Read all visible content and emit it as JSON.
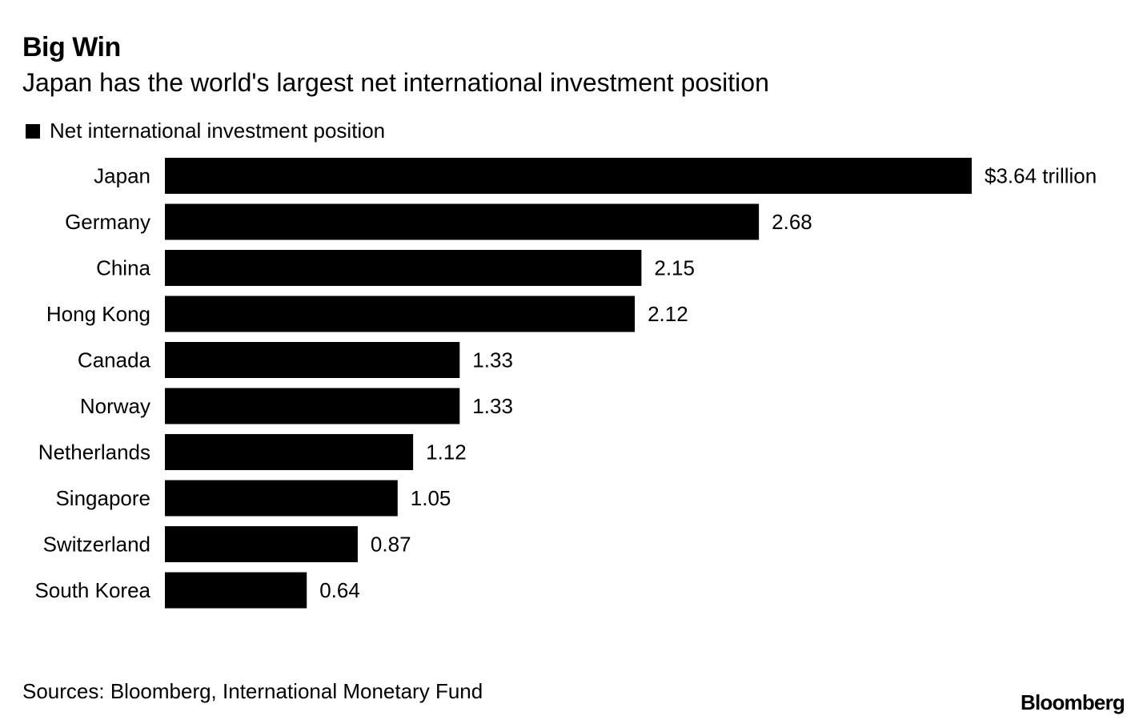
{
  "title": "Big Win",
  "subtitle": "Japan has the world's largest net international investment position",
  "legend": {
    "label": "Net international investment position",
    "color": "#000000"
  },
  "chart_data": {
    "type": "bar",
    "orientation": "horizontal",
    "categories": [
      "Japan",
      "Germany",
      "China",
      "Hong Kong",
      "Canada",
      "Norway",
      "Netherlands",
      "Singapore",
      "Switzerland",
      "South Korea"
    ],
    "series": [
      {
        "name": "Net international investment position",
        "values": [
          3.64,
          2.68,
          2.15,
          2.12,
          1.33,
          1.33,
          1.12,
          1.05,
          0.87,
          0.64
        ],
        "data_labels": [
          "$3.64 trillion",
          "2.68",
          "2.15",
          "2.12",
          "1.33",
          "1.33",
          "1.12",
          "1.05",
          "0.87",
          "0.64"
        ],
        "color": "#000000"
      }
    ],
    "title": "Big Win",
    "subtitle": "Japan has the world's largest net international investment position",
    "xlabel": "",
    "ylabel": "",
    "xlim": [
      0,
      3.64
    ],
    "grid": false,
    "legend_position": "top-left"
  },
  "source": "Sources: Bloomberg, International Monetary Fund",
  "brand": "Bloomberg"
}
